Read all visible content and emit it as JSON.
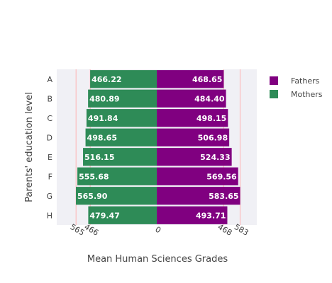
{
  "chart_data": {
    "type": "bar",
    "orientation": "horizontal-diverging",
    "categories": [
      "A",
      "B",
      "C",
      "D",
      "E",
      "F",
      "G",
      "H"
    ],
    "series": [
      {
        "name": "Fathers",
        "color": "#800080",
        "values": [
          468.65,
          484.4,
          498.15,
          506.98,
          524.33,
          569.56,
          583.65,
          493.71
        ],
        "side": "right"
      },
      {
        "name": "Mothers",
        "color": "#2e8b57",
        "values": [
          466.22,
          480.89,
          491.84,
          498.65,
          516.15,
          555.68,
          565.9,
          479.47
        ],
        "side": "left"
      }
    ],
    "data_labels": {
      "Fathers": [
        "468.65",
        "484.40",
        "498.15",
        "506.98",
        "524.33",
        "569.56",
        "583.65",
        "493.71"
      ],
      "Mothers": [
        "466.22",
        "480.89",
        "491.84",
        "498.65",
        "516.15",
        "555.68",
        "565.90",
        "479.47"
      ]
    },
    "xlabel": "Mean Human Sciences Grades",
    "ylabel": "Parents' education level",
    "xlim": [
      -700,
      700
    ],
    "x_tick_values": [
      -565,
      -466,
      0,
      468,
      583
    ],
    "x_tick_labels": [
      "565",
      "466",
      "0",
      "468",
      "583"
    ],
    "reference_lines": [
      -565,
      -466,
      468,
      583
    ],
    "reference_line_color": "#ffb3b3",
    "plot_background": "#f0f0f5",
    "legend": {
      "position": "top-right",
      "entries": [
        "Fathers",
        "Mothers"
      ]
    }
  }
}
